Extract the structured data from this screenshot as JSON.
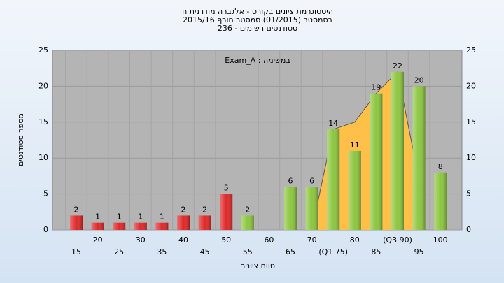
{
  "chart_data": {
    "type": "bar",
    "title": [
      "היסטוגרמת ציונים בקורס - אלגברה מודרנית ח",
      "בסמסטר  (01/2015)  סמסטר חורף 2015/16",
      "סטודנטים רשומים - 236"
    ],
    "annotation": "במשימה : Exam_A",
    "x_label": "טווח ציונים",
    "y_label": "מספר סטודנטים",
    "categories": [
      "15",
      "20",
      "25",
      "30",
      "35",
      "40",
      "45",
      "50",
      "55",
      "60",
      "65",
      "70",
      "(Q1 75)",
      "80",
      "85",
      "(Q3 90)",
      "95",
      "100"
    ],
    "values": [
      2,
      1,
      1,
      1,
      1,
      2,
      2,
      5,
      2,
      null,
      6,
      6,
      14,
      11,
      19,
      22,
      20,
      8
    ],
    "colors": [
      "#e02828",
      "#e02828",
      "#e02828",
      "#e02828",
      "#e02828",
      "#e02828",
      "#e02828",
      "#e02828",
      "#8cc63f",
      "#8cc63f",
      "#8cc63f",
      "#8cc63f",
      "#8cc63f",
      "#8cc63f",
      "#8cc63f",
      "#8cc63f",
      "#8cc63f",
      "#8cc63f"
    ],
    "area": {
      "color": "#ffc04a",
      "values": [
        null,
        null,
        null,
        null,
        null,
        null,
        null,
        null,
        null,
        null,
        null,
        0,
        14,
        15,
        19,
        22,
        7,
        null
      ]
    },
    "ylim": [
      0,
      25
    ],
    "yticks": [
      0,
      5,
      10,
      15,
      20,
      25
    ],
    "grid": true
  }
}
